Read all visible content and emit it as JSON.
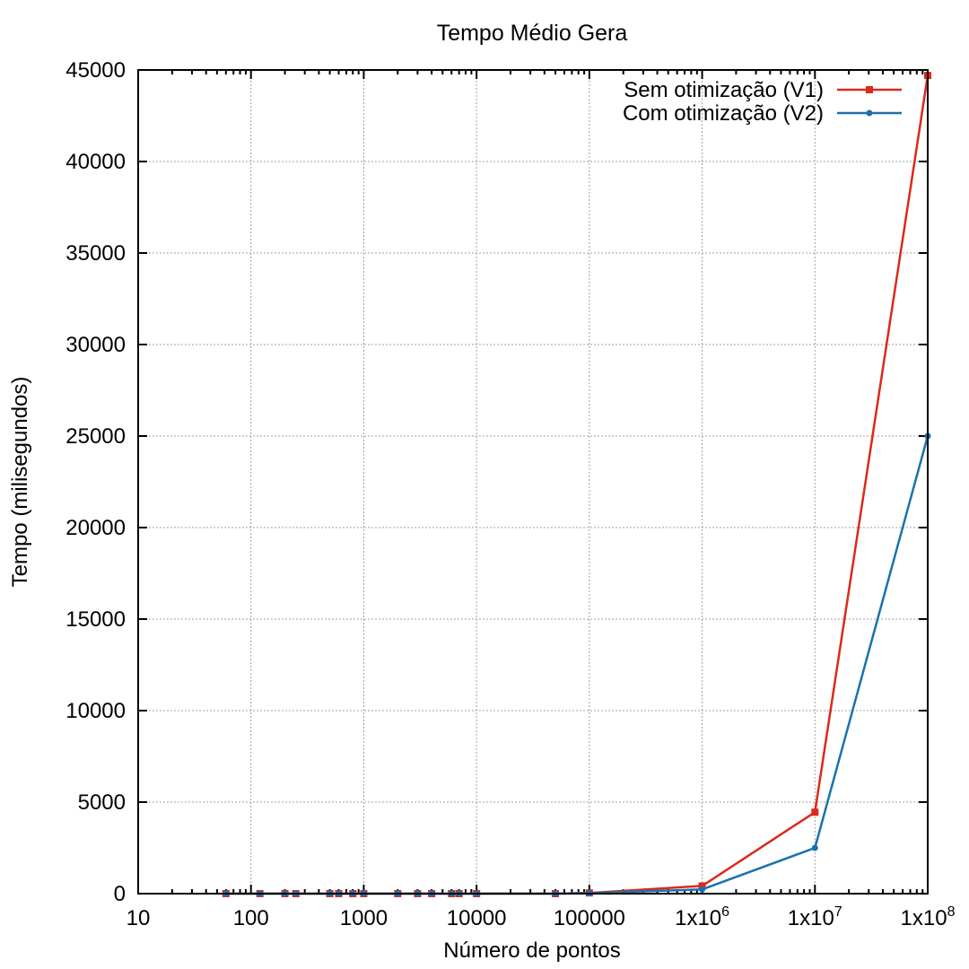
{
  "chart_data": {
    "type": "line",
    "title": "Tempo Médio Gera",
    "xlabel": "Número de pontos",
    "ylabel": "Tempo (milisegundos)",
    "xscale": "log",
    "xlim": [
      10,
      100000000
    ],
    "ylim": [
      0,
      45000
    ],
    "grid": true,
    "legend_position": "top-right",
    "x_ticks": [
      {
        "value": 10,
        "label": "10"
      },
      {
        "value": 100,
        "label": "100"
      },
      {
        "value": 1000,
        "label": "1000"
      },
      {
        "value": 10000,
        "label": "10000"
      },
      {
        "value": 100000,
        "label": "100000"
      },
      {
        "value": 1000000,
        "label": "1x10",
        "exp": "6"
      },
      {
        "value": 10000000,
        "label": "1x10",
        "exp": "7"
      },
      {
        "value": 100000000,
        "label": "1x10",
        "exp": "8"
      }
    ],
    "y_ticks": [
      0,
      5000,
      10000,
      15000,
      20000,
      25000,
      30000,
      35000,
      40000,
      45000
    ],
    "series": [
      {
        "name": "Sem otimização (V1)",
        "color": "#d92a1c",
        "marker": "square",
        "points": [
          [
            60,
            0
          ],
          [
            120,
            0
          ],
          [
            200,
            0
          ],
          [
            250,
            0
          ],
          [
            500,
            0
          ],
          [
            600,
            0
          ],
          [
            800,
            0
          ],
          [
            1000,
            0
          ],
          [
            2000,
            0
          ],
          [
            3000,
            0
          ],
          [
            4000,
            0
          ],
          [
            6000,
            0
          ],
          [
            7000,
            0
          ],
          [
            10000,
            0
          ],
          [
            50000,
            0
          ],
          [
            100000,
            40
          ],
          [
            1000000,
            420
          ],
          [
            10000000,
            4450
          ],
          [
            100000000,
            44700
          ]
        ]
      },
      {
        "name": "Com otimização (V2)",
        "color": "#1a72ad",
        "marker": "circle",
        "points": [
          [
            60,
            0
          ],
          [
            120,
            0
          ],
          [
            200,
            0
          ],
          [
            250,
            0
          ],
          [
            500,
            0
          ],
          [
            600,
            0
          ],
          [
            800,
            0
          ],
          [
            1000,
            0
          ],
          [
            2000,
            0
          ],
          [
            3000,
            0
          ],
          [
            4000,
            0
          ],
          [
            6000,
            0
          ],
          [
            7000,
            0
          ],
          [
            10000,
            0
          ],
          [
            50000,
            0
          ],
          [
            100000,
            30
          ],
          [
            1000000,
            230
          ],
          [
            10000000,
            2500
          ],
          [
            100000000,
            25000
          ]
        ]
      }
    ]
  }
}
